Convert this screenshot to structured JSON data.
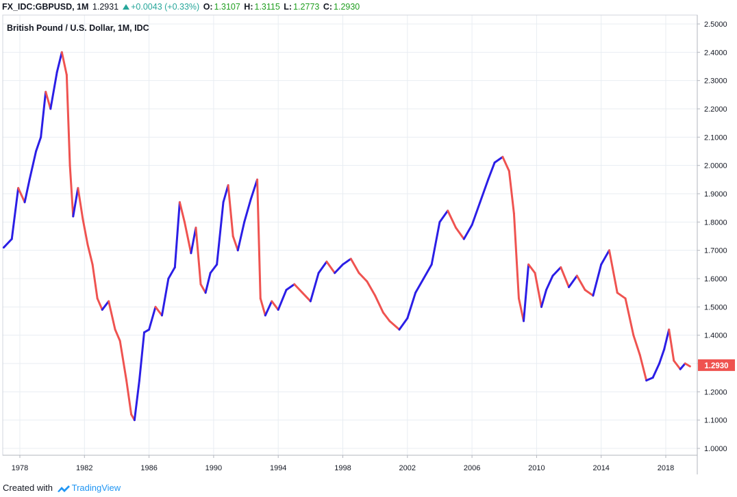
{
  "header": {
    "symbol": "FX_IDC:GBPUSD, 1M",
    "last": "1.2931",
    "change": "+0.0043 (+0.33%)",
    "o_label": "O:",
    "o_value": "1.3107",
    "h_label": "H:",
    "h_value": "1.3115",
    "l_label": "L:",
    "l_value": "1.2773",
    "c_label": "C:",
    "c_value": "1.2930"
  },
  "footer": {
    "created_with": "Created with",
    "brand": "TradingView"
  },
  "colors": {
    "up": "#2b1ee6",
    "down": "#ef5350",
    "price_tag": "#ef5350",
    "grid": "#e8edf2",
    "change_up": "#26a69a"
  },
  "chart_data": {
    "type": "line",
    "title": "British Pound / U.S. Dollar, 1M, IDC",
    "x_ticks": [
      "1978",
      "1982",
      "1986",
      "1990",
      "1994",
      "1998",
      "2002",
      "2006",
      "2010",
      "2014",
      "2018"
    ],
    "y_ticks": [
      "1.0000",
      "1.1000",
      "1.2000",
      "1.3000",
      "1.4000",
      "1.5000",
      "1.6000",
      "1.7000",
      "1.8000",
      "1.9000",
      "2.0000",
      "2.1000",
      "2.2000",
      "2.3000",
      "2.4000",
      "2.5000"
    ],
    "ylim": [
      0.97,
      2.52
    ],
    "xlim": [
      1976.9,
      2019.8
    ],
    "last_price_label": "1.2930",
    "last_price": 1.293,
    "grid": true,
    "series": [
      {
        "x": [
          1977.0,
          1977.5,
          1977.9,
          1978.3,
          1978.6,
          1979.0,
          1979.3,
          1979.6,
          1979.9,
          1980.3,
          1980.6,
          1980.9,
          1981.1,
          1981.3,
          1981.6,
          1981.9,
          1982.2,
          1982.5,
          1982.8,
          1983.1,
          1983.5,
          1983.9,
          1984.2,
          1984.6,
          1984.9,
          1985.1,
          1985.4,
          1985.7,
          1986.0,
          1986.4,
          1986.8,
          1987.2,
          1987.6,
          1987.9,
          1988.2,
          1988.6,
          1988.9,
          1989.2,
          1989.5,
          1989.8,
          1990.2,
          1990.6,
          1990.9,
          1991.2,
          1991.5,
          1991.9,
          1992.3,
          1992.7,
          1992.9,
          1993.2,
          1993.6,
          1994.0,
          1994.5,
          1995.0,
          1995.5,
          1996.0,
          1996.5,
          1997.0,
          1997.5,
          1998.0,
          1998.5,
          1999.0,
          1999.5,
          2000.0,
          2000.5,
          2000.9,
          2001.5,
          2002.0,
          2002.5,
          2003.0,
          2003.5,
          2004.0,
          2004.5,
          2005.0,
          2005.5,
          2006.0,
          2006.5,
          2007.0,
          2007.4,
          2007.9,
          2008.3,
          2008.6,
          2008.9,
          2009.2,
          2009.5,
          2009.9,
          2010.3,
          2010.6,
          2011.0,
          2011.5,
          2012.0,
          2012.5,
          2013.0,
          2013.5,
          2014.0,
          2014.5,
          2015.0,
          2015.5,
          2016.0,
          2016.4,
          2016.8,
          2017.2,
          2017.6,
          2017.9,
          2018.2,
          2018.5,
          2018.9,
          2019.2,
          2019.5
        ],
        "y": [
          1.71,
          1.74,
          1.92,
          1.87,
          1.95,
          2.05,
          2.1,
          2.26,
          2.2,
          2.33,
          2.4,
          2.32,
          2.0,
          1.82,
          1.92,
          1.81,
          1.72,
          1.65,
          1.53,
          1.49,
          1.52,
          1.42,
          1.38,
          1.24,
          1.12,
          1.1,
          1.24,
          1.41,
          1.42,
          1.5,
          1.47,
          1.6,
          1.64,
          1.87,
          1.8,
          1.69,
          1.78,
          1.58,
          1.55,
          1.62,
          1.65,
          1.87,
          1.93,
          1.75,
          1.7,
          1.8,
          1.88,
          1.95,
          1.53,
          1.47,
          1.52,
          1.49,
          1.56,
          1.58,
          1.55,
          1.52,
          1.62,
          1.66,
          1.62,
          1.65,
          1.67,
          1.62,
          1.59,
          1.54,
          1.48,
          1.45,
          1.42,
          1.46,
          1.55,
          1.6,
          1.65,
          1.8,
          1.84,
          1.78,
          1.74,
          1.79,
          1.87,
          1.95,
          2.01,
          2.03,
          1.98,
          1.83,
          1.53,
          1.45,
          1.65,
          1.62,
          1.5,
          1.56,
          1.61,
          1.64,
          1.57,
          1.61,
          1.56,
          1.54,
          1.65,
          1.7,
          1.55,
          1.53,
          1.4,
          1.33,
          1.24,
          1.25,
          1.3,
          1.35,
          1.42,
          1.31,
          1.28,
          1.3,
          1.29
        ]
      }
    ]
  }
}
